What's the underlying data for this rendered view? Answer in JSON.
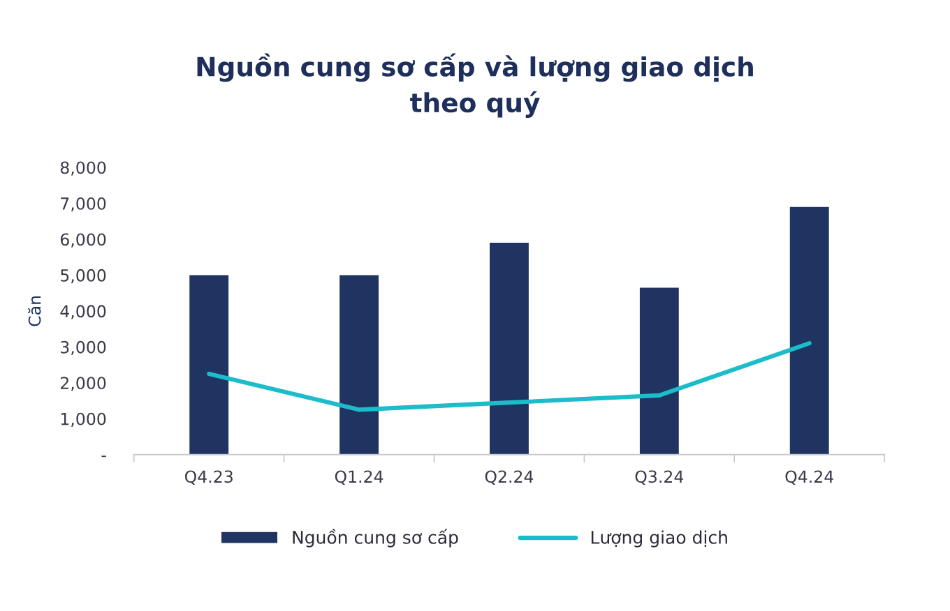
{
  "chart_data": {
    "type": "bar",
    "title": "Nguồn cung sơ cấp và lượng giao dịch\ntheo quý",
    "ylabel": "Căn",
    "categories": [
      "Q4.23",
      "Q1.24",
      "Q2.24",
      "Q3.24",
      "Q4.24"
    ],
    "series": [
      {
        "name": "Nguồn cung sơ cấp",
        "color": "#1f3461",
        "values": [
          5000,
          5000,
          5900,
          4650,
          6900
        ]
      },
      {
        "name": "Lượng giao dịch",
        "type": "line",
        "color": "#1cbccb",
        "values": [
          2250,
          1250,
          1450,
          1650,
          3100
        ]
      }
    ],
    "ylim": [
      0,
      8000
    ],
    "yticks": [
      {
        "value": 0,
        "label": "-"
      },
      {
        "value": 1000,
        "label": "1,000"
      },
      {
        "value": 2000,
        "label": "2,000"
      },
      {
        "value": 3000,
        "label": "3,000"
      },
      {
        "value": 4000,
        "label": "4,000"
      },
      {
        "value": 5000,
        "label": "5,000"
      },
      {
        "value": 6000,
        "label": "6,000"
      },
      {
        "value": 7000,
        "label": "7,000"
      },
      {
        "value": 8000,
        "label": "8,000"
      }
    ],
    "grid": false,
    "legend": "bottom",
    "marker": "none",
    "line_style": "solid"
  }
}
